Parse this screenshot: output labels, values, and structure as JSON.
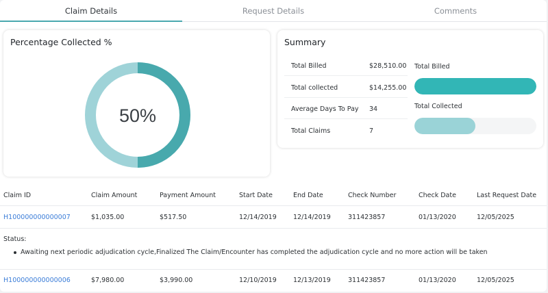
{
  "tabs": [
    {
      "label": "Claim Details",
      "active": true
    },
    {
      "label": "Request Details",
      "active": false
    },
    {
      "label": "Comments",
      "active": false
    }
  ],
  "percentage_card": {
    "title": "Percentage Collected %",
    "value_label": "50%",
    "collected_fraction": 0.5,
    "colors": {
      "collected": "#48a9ad",
      "remaining": "#9fd3d8",
      "collected_stroke": "#2d8e94"
    }
  },
  "summary": {
    "title": "Summary",
    "rows": [
      {
        "label": "Total Billed",
        "value": "$28,510.00"
      },
      {
        "label": "Total collected",
        "value": "$14,255.00"
      },
      {
        "label": "Average Days To Pay",
        "value": "34"
      },
      {
        "label": "Total Claims",
        "value": "7"
      }
    ],
    "bars": [
      {
        "label": "Total Billed",
        "fraction": 1.0,
        "color": "#32b6b6"
      },
      {
        "label": "Total Collected",
        "fraction": 0.5,
        "color": "#9ad3d7"
      }
    ]
  },
  "table": {
    "columns": [
      "Claim ID",
      "Claim Amount",
      "Payment Amount",
      "Start Date",
      "End Date",
      "Check Number",
      "Check Date",
      "Last Request Date"
    ],
    "rows": [
      {
        "claim_id": "H100000000000007",
        "claim_amount": "$1,035.00",
        "payment_amount": "$517.50",
        "start_date": "12/14/2019",
        "end_date": "12/14/2019",
        "check_number": "311423857",
        "check_date": "01/13/2020",
        "last_request_date": "12/05/2025"
      },
      {
        "claim_id": "H100000000000006",
        "claim_amount": "$7,980.00",
        "payment_amount": "$3,990.00",
        "start_date": "12/10/2019",
        "end_date": "12/13/2019",
        "check_number": "311423857",
        "check_date": "01/13/2020",
        "last_request_date": "12/05/2025"
      }
    ],
    "status": {
      "label": "Status:",
      "items": [
        "Awaiting next periodic adjudication cycle,Finalized The Claim/Encounter has completed the adjudication cycle and no more action will be taken"
      ]
    }
  }
}
